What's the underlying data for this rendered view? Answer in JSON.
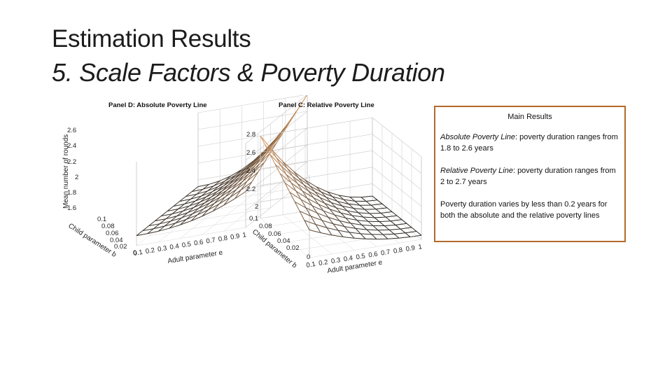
{
  "slide": {
    "title": "Estimation Results",
    "subtitle": "5. Scale Factors & Poverty Duration"
  },
  "figure": {
    "panels": [
      {
        "title": "Panel D: Absolute Poverty Line",
        "z_label": "Mean number of rounds",
        "z_ticks": [
          "2.6",
          "2.4",
          "2.2",
          "2",
          "1.8",
          "1.6"
        ],
        "x_label": "Adult parameter e",
        "x_ticks": [
          "0.1",
          "0.2",
          "0.3",
          "0.4",
          "0.5",
          "0.6",
          "0.7",
          "0.8",
          "0.9",
          "1"
        ],
        "y_label": "Child parameter b",
        "y_ticks": [
          "0.1",
          "0.08",
          "0.06",
          "0.04",
          "0.02",
          "0"
        ]
      },
      {
        "title": "Panel C: Relative Poverty Line",
        "z_ticks": [
          "2.8",
          "2.6",
          "2.4",
          "2.2",
          "2"
        ],
        "x_label": "Adult parameter e",
        "x_ticks": [
          "0.1",
          "0.2",
          "0.3",
          "0.4",
          "0.5",
          "0.6",
          "0.7",
          "0.8",
          "0.9",
          "1"
        ],
        "y_label": "Child parameter b",
        "y_ticks": [
          "0.1",
          "0.08",
          "0.06",
          "0.04",
          "0.02",
          "0"
        ]
      }
    ]
  },
  "results": {
    "heading": "Main Results",
    "items": [
      {
        "lead": "Absolute Poverty Line",
        "text": ": poverty duration ranges from 1.8 to 2.6 years"
      },
      {
        "lead": "Relative Poverty Line",
        "text": ": poverty duration ranges from 2 to 2.7 years"
      },
      {
        "lead": "",
        "text": "Poverty duration varies by less than 0.2 years for both the absolute and the relative poverty lines"
      }
    ]
  },
  "colors": {
    "box_border": "#b36a2a",
    "surface_high": "#e8a467",
    "surface_low": "#222222"
  }
}
